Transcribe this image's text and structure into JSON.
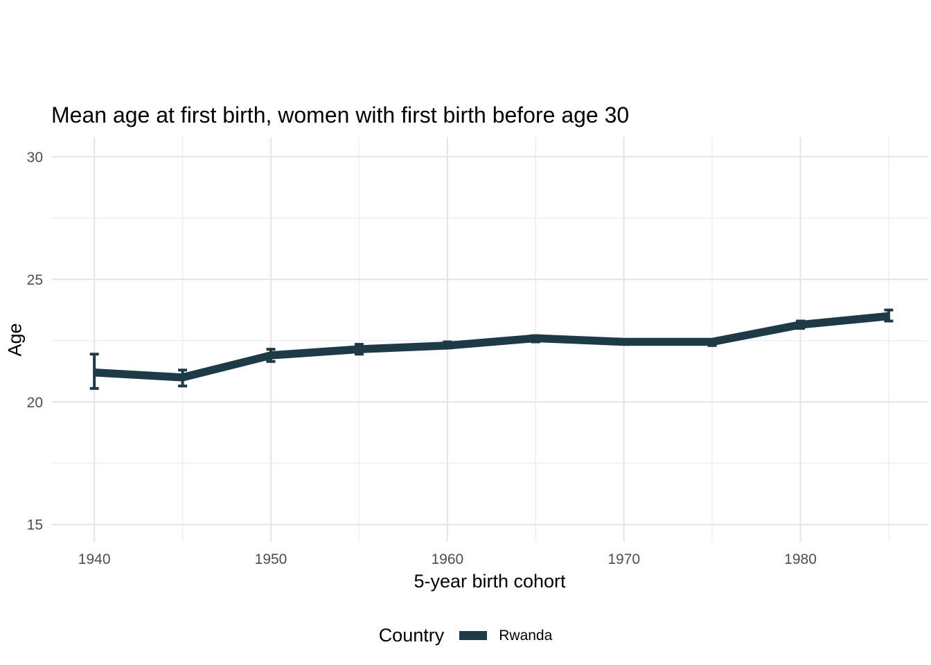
{
  "title": "Mean age at first birth, women with first birth before age 30",
  "axes": {
    "x": {
      "title": "5-year birth cohort",
      "tick_labels": [
        "1940",
        "1950",
        "1960",
        "1970",
        "1980"
      ]
    },
    "y": {
      "title": "Age",
      "tick_labels": [
        "15",
        "20",
        "25",
        "30"
      ]
    }
  },
  "legend": {
    "title": "Country",
    "entries": [
      {
        "label": "Rwanda",
        "color": "#1d3a46"
      }
    ]
  },
  "colors": {
    "series": "#1d3a46",
    "grid_major": "#e6e6e6",
    "grid_minor": "#ededed",
    "tick_label": "#4d4d4d",
    "text": "#000000",
    "background": "#ffffff"
  },
  "chart_data": {
    "type": "line",
    "title": "Mean age at first birth, women with first birth before age 30",
    "xlabel": "5-year birth cohort",
    "ylabel": "Age",
    "x": [
      1940,
      1945,
      1950,
      1955,
      1960,
      1965,
      1970,
      1975,
      1980,
      1985
    ],
    "series": [
      {
        "name": "Rwanda",
        "color": "#1d3a46",
        "values": [
          21.2,
          21.0,
          21.9,
          22.15,
          22.3,
          22.6,
          22.45,
          22.45,
          23.15,
          23.5
        ],
        "ci_low": [
          20.55,
          20.65,
          21.65,
          21.95,
          22.2,
          22.45,
          22.35,
          22.3,
          23.0,
          23.3
        ],
        "ci_high": [
          21.95,
          21.3,
          22.15,
          22.35,
          22.45,
          22.7,
          22.55,
          22.55,
          23.3,
          23.75
        ]
      }
    ],
    "error_bars": true,
    "xlim": [
      1937.6,
      1987.2
    ],
    "ylim": [
      14.3,
      30.8
    ],
    "x_major_ticks": [
      1940,
      1950,
      1960,
      1970,
      1980
    ],
    "x_minor_ticks": [
      1945,
      1955,
      1965,
      1975,
      1985
    ],
    "y_major_ticks": [
      15,
      20,
      25,
      30
    ],
    "y_minor_ticks": [
      17.5,
      22.5,
      27.5
    ],
    "grid": "major+minor horizontal and vertical",
    "legend_position": "bottom"
  }
}
